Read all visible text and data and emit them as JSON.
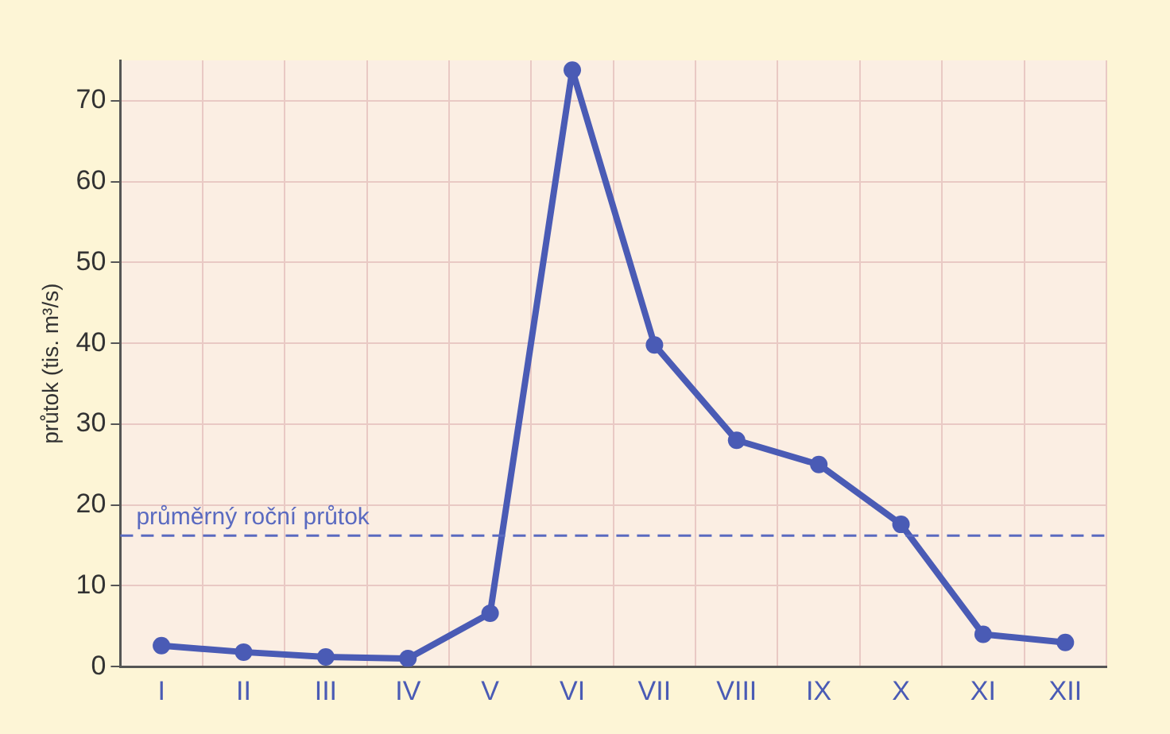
{
  "chart_data": {
    "type": "line",
    "ylabel": "průtok (tis. m³/s)",
    "categories": [
      "I",
      "II",
      "III",
      "IV",
      "V",
      "VI",
      "VII",
      "VIII",
      "IX",
      "X",
      "XI",
      "XII"
    ],
    "series": [
      {
        "color": "#4a5bb5",
        "values": [
          2.6,
          1.8,
          1.2,
          1.0,
          6.6,
          73.8,
          39.8,
          28,
          25,
          17.6,
          4,
          3
        ]
      }
    ],
    "ylim": [
      0,
      75
    ],
    "yticks": [
      0,
      10,
      20,
      30,
      40,
      50,
      60,
      70
    ],
    "grid": true,
    "legend": false,
    "marker": "circle",
    "line_style": "solid",
    "ref_lines": [
      {
        "axis": "y",
        "value": 16.2,
        "label": "průměrný roční průtok",
        "color": "#5a6ac0",
        "line_style": "dashed"
      }
    ]
  }
}
